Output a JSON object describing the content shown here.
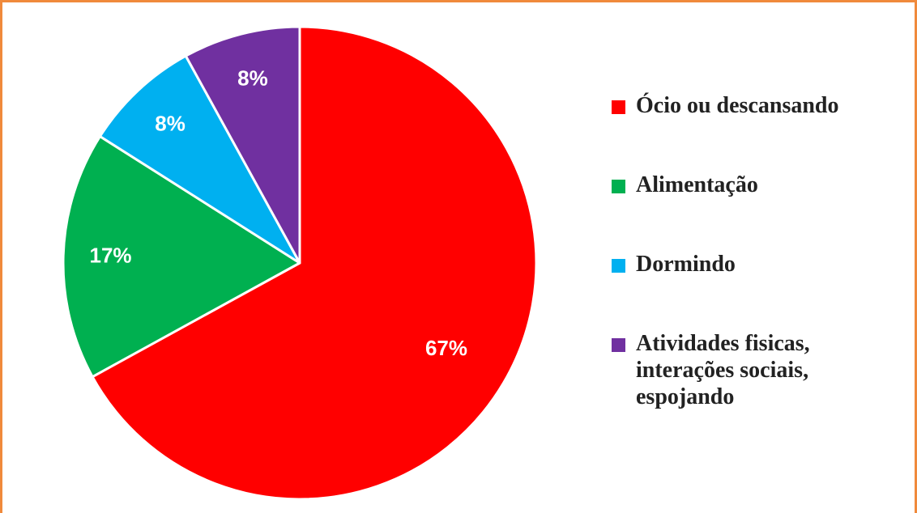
{
  "chart_data": {
    "type": "pie",
    "title": "",
    "slices": [
      {
        "label": "Ócio ou descansando",
        "value": 67,
        "value_label": "67%",
        "color": "#FF0000"
      },
      {
        "label": "Alimentação",
        "value": 17,
        "value_label": "17%",
        "color": "#00B050"
      },
      {
        "label": "Dormindo",
        "value": 8,
        "value_label": "8%",
        "color": "#00B0F0"
      },
      {
        "label": "Atividades fisicas,\ninterações sociais,\nespojando",
        "value": 8,
        "value_label": "8%",
        "color": "#7030A0"
      }
    ],
    "start_angle_deg": 0,
    "direction": "clockwise",
    "legend_position": "right"
  }
}
